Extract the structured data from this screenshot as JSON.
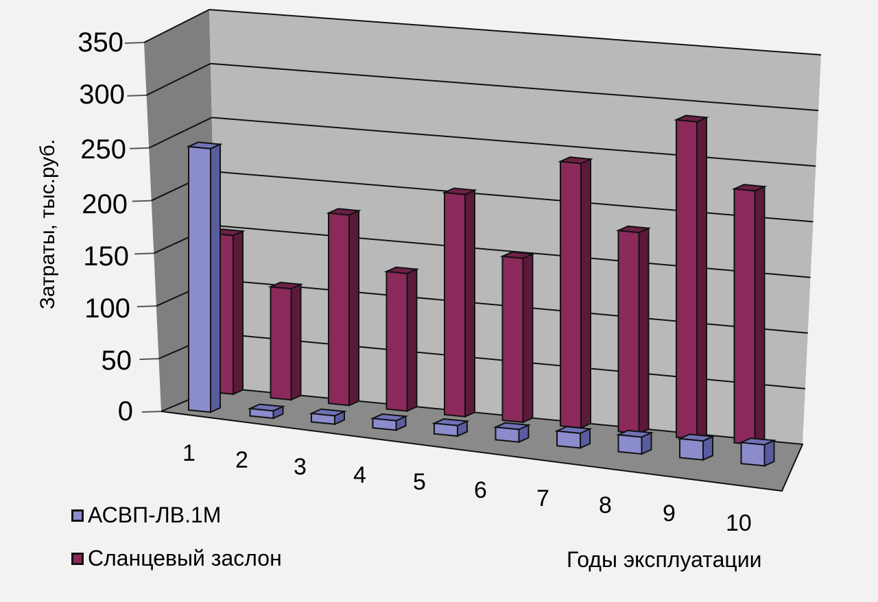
{
  "chart_data": {
    "type": "bar",
    "style": "3d-clustered-column",
    "title": "",
    "xlabel": "Годы эксплуатации",
    "ylabel": "Затраты, тыс.руб.",
    "ylim": [
      0,
      350
    ],
    "yticks": [
      0,
      50,
      100,
      150,
      200,
      250,
      300,
      350
    ],
    "grid": true,
    "legend_position": "bottom-left",
    "categories": [
      "1",
      "2",
      "3",
      "4",
      "5",
      "6",
      "7",
      "8",
      "9",
      "10"
    ],
    "series": [
      {
        "name": "АСВП-ЛВ.1М",
        "color": "#8b8ccc",
        "values": [
          250,
          7,
          8,
          9,
          10,
          12,
          14,
          16,
          18,
          20
        ]
      },
      {
        "name": "Сланцевый заслон",
        "color": "#8b2a5a",
        "values": [
          150,
          105,
          180,
          130,
          210,
          155,
          250,
          190,
          300,
          240
        ]
      }
    ]
  },
  "axis": {
    "y_ticks": [
      "350",
      "300",
      "250",
      "200",
      "150",
      "100",
      "50",
      "0"
    ],
    "y_title": "Затраты, тыс.руб.",
    "x_ticks": [
      "1",
      "2",
      "3",
      "4",
      "5",
      "6",
      "7",
      "8",
      "9",
      "10"
    ],
    "x_title": "Годы эксплуатации"
  },
  "legend": {
    "items": [
      {
        "label": "АСВП-ЛВ.1М",
        "color": "#8b8ccc"
      },
      {
        "label": "Сланцевый заслон",
        "color": "#8b2a5a"
      }
    ]
  }
}
